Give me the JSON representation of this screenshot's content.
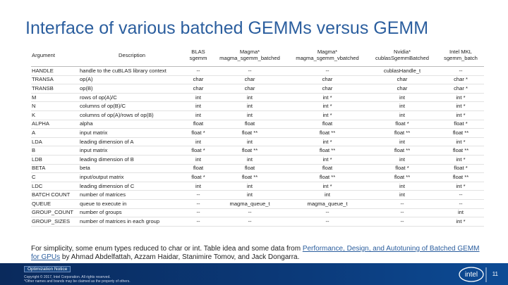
{
  "title": "Interface of various batched GEMMs versus GEMM",
  "table": {
    "headers": [
      "Argument",
      "Description",
      "BLAS sgemm",
      "Magma* magma_sgemm_batched",
      "Magma* magma_sgemm_vbatched",
      "Nvidia* cublasSgemmBatched",
      "Intel MKL sgemm_batch"
    ],
    "rows": [
      [
        "HANDLE",
        "handle to the cuBLAS library context",
        "--",
        "--",
        "--",
        "cublasHandle_t",
        "--"
      ],
      [
        "TRANSA",
        "op(A)",
        "char",
        "char",
        "char",
        "char",
        "char *"
      ],
      [
        "TRANSB",
        "op(B)",
        "char",
        "char",
        "char",
        "char",
        "char *"
      ],
      [
        "M",
        "rows of op(A)/C",
        "int",
        "int",
        "int *",
        "int",
        "int *"
      ],
      [
        "N",
        "columns of op(B)/C",
        "int",
        "int",
        "int *",
        "int",
        "int *"
      ],
      [
        "K",
        "columns of op(A)/rows of op(B)",
        "int",
        "int",
        "int *",
        "int",
        "int *"
      ],
      [
        "ALPHA",
        "alpha",
        "float",
        "float",
        "float",
        "float *",
        "float *"
      ],
      [
        "A",
        "input matrix",
        "float *",
        "float **",
        "float **",
        "float **",
        "float **"
      ],
      [
        "LDA",
        "leading dimension of A",
        "int",
        "int",
        "int *",
        "int",
        "int *"
      ],
      [
        "B",
        "input matrix",
        "float *",
        "float **",
        "float **",
        "float **",
        "float **"
      ],
      [
        "LDB",
        "leading dimension of B",
        "int",
        "int",
        "int *",
        "int",
        "int *"
      ],
      [
        "BETA",
        "beta",
        "float",
        "float",
        "float",
        "float *",
        "float *"
      ],
      [
        "C",
        "input/output matrix",
        "float *",
        "float **",
        "float **",
        "float **",
        "float **"
      ],
      [
        "LDC",
        "leading dimension of C",
        "int",
        "int",
        "int *",
        "int",
        "int *"
      ],
      [
        "BATCH COUNT",
        "number of matrices",
        "--",
        "int",
        "int",
        "int",
        "--"
      ],
      [
        "QUEUE",
        "queue to execute in",
        "--",
        "magma_queue_t",
        "magma_queue_t",
        "--",
        "--"
      ],
      [
        "GROUP_COUNT",
        "number of groups",
        "--",
        "--",
        "--",
        "--",
        "int"
      ],
      [
        "GROUP_SIZES",
        "number of matrices in each group",
        "--",
        "--",
        "--",
        "--",
        "int *"
      ]
    ]
  },
  "note": {
    "before": "For simplicity, some enum types reduced to char or int. Table idea and some data from ",
    "link": "Performance, Design, and Autotuning of Batched GEMM for GPUs",
    "after": " by Ahmad Abdelfattah, Azzam Haidar, Stanimire Tomov, and Jack Dongarra."
  },
  "footer": {
    "notice": "Optimization Notice",
    "copyright": "Copyright © 2017, Intel Corporation. All rights reserved.",
    "trademark": "*Other names and brands may be claimed as the property of others.",
    "logo": "intel",
    "page": "11"
  }
}
